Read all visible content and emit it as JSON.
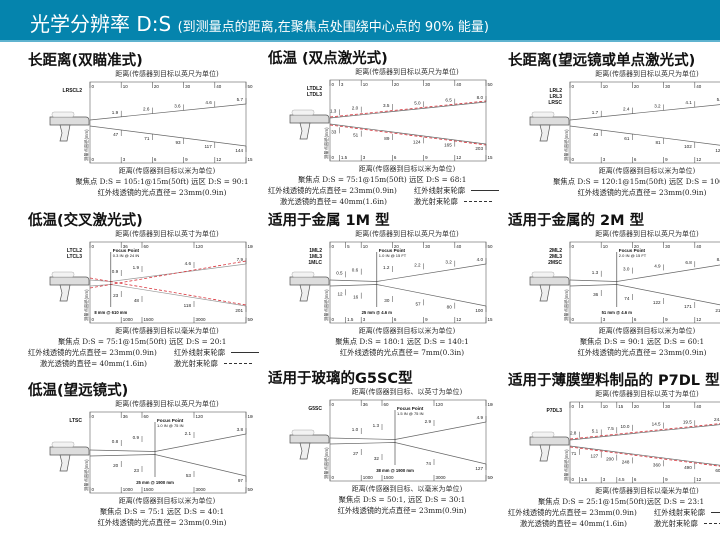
{
  "header": {
    "title": "光学分辨率 D:S",
    "subtitle": "(到测量点的距离,在聚焦点处围绕中心点的 90% 能量)",
    "color": "#0584ad"
  },
  "y_axis_label": "测量点直径(mm)",
  "laser_color": "#d9363e",
  "panels": [
    {
      "title": "长距离(双瞄准式)",
      "top_caption": "距离(传感器到目标以英尺为单位)",
      "top_ticks": [
        0,
        10,
        20,
        30,
        40,
        50
      ],
      "models": [
        "LRSCL2"
      ],
      "upper": [
        "1.9",
        "2.6",
        "3.6",
        "4.6",
        "5.7"
      ],
      "lower": [
        "47",
        "71",
        "93",
        "117",
        "144"
      ],
      "bottom_ticks": [
        "0",
        "3",
        "6",
        "9",
        "12",
        "15"
      ],
      "laser": false,
      "bottom_caption": "距离(传感器到目标以米为单位)",
      "spec": [
        "聚焦点 D:S = 105:1@15m(50ft)  远区 D:S = 90:1",
        "红外线透镜的光点直径= 23mm(0.9in)"
      ]
    },
    {
      "title": "低温 (双点激光式)",
      "top_caption": "距离(传感器到目标以英尺为单位)",
      "top_ticks": [
        0,
        3,
        10,
        20,
        30,
        40,
        50
      ],
      "models": [
        "LTDL2",
        "LTDL3"
      ],
      "upper": [
        "1.3",
        "2.0",
        "3.5",
        "5.0",
        "6.5",
        "8.0"
      ],
      "lower": [
        "33",
        "51",
        "89",
        "124",
        "165",
        "203"
      ],
      "bottom_ticks": [
        "0",
        "1.5",
        "3",
        "6",
        "9",
        "12",
        "15"
      ],
      "laser": true,
      "bottom_caption": "距离(传感器到目标以米为单位)",
      "spec": [
        "聚焦点 D:S = 75:1@15m(50ft)   远区 D:S = 68:1"
      ],
      "legend": [
        {
          "text": "红外线透镜的光点直径= 23mm(0.9in)",
          "label": "红外线射束轮廓",
          "style": "solid"
        },
        {
          "text": "激光透镜的直径= 40mm(1.6in)",
          "label": "激光射束轮廓",
          "style": "dashed"
        }
      ]
    },
    {
      "title": "长距离(望远镜或单点激光式)",
      "top_caption": "距离(传感器到目标以英尺为单位)",
      "top_ticks": [
        0,
        10,
        20,
        30,
        40,
        50
      ],
      "models": [
        "LRL2",
        "LRL3",
        "LRSC"
      ],
      "upper": [
        "1.7",
        "2.4",
        "3.2",
        "4.1",
        "5.0"
      ],
      "lower": [
        "43",
        "61",
        "81",
        "102",
        "124"
      ],
      "bottom_ticks": [
        "0",
        "3",
        "6",
        "9",
        "12",
        "15"
      ],
      "laser": false,
      "bottom_caption": "距离(传感器到目标以米为单位)",
      "spec": [
        "聚焦点 D:S = 120:1@15m(50ft)  远区 D:S = 100:1",
        "红外线透镜的光点直径= 23mm(0.9in)"
      ]
    },
    {
      "title": "低温(交叉激光式)",
      "top_caption": "距离(传感器到目标以英寸为单位)",
      "top_ticks": [
        0,
        36,
        60,
        120,
        180
      ],
      "models": [
        "LTCL2",
        "LTCL3"
      ],
      "focus": {
        "label": "Focus Point",
        "value": "0.3 IN @ 24 IN",
        "at": 24,
        "metric": "8 mm @ 610 mm"
      },
      "upper": [
        "0.9",
        "1.9",
        "4.6",
        "7.9"
      ],
      "lower": [
        "23",
        "48",
        "118",
        "201"
      ],
      "bottom_ticks": [
        "0",
        "1000",
        "1500",
        "3000",
        "5000"
      ],
      "laser": true,
      "bottom_caption": "距离(传感器到目标以毫米为单位)",
      "spec": [
        "聚焦点 D:S = 75:1@15m(50ft)      远区 D:S = 20:1"
      ],
      "legend": [
        {
          "text": "红外线透镜的光点直径= 23mm(0.9in)",
          "label": "红外线射束轮廓",
          "style": "solid"
        },
        {
          "text": "激光透镜的直径= 40mm(1.6in)",
          "label": "激光射束轮廓",
          "style": "dashed"
        }
      ]
    },
    {
      "title": "适用于金属 1M 型",
      "top_caption": "距离(传感器到目标以英尺为单位)",
      "top_ticks": [
        0,
        5,
        10,
        20,
        30,
        40,
        50
      ],
      "models": [
        "1ML2",
        "1ML3",
        "1MLC"
      ],
      "focus": {
        "label": "Focus Point",
        "value": "1.0 IN @ 15 FT",
        "at": 15,
        "metric": "25 mm @ 4.6 m"
      },
      "upper": [
        "0.5",
        "0.6",
        "1.2",
        "2.2",
        "3.2",
        "4.0"
      ],
      "lower": [
        "12",
        "16",
        "30",
        "57",
        "80",
        "100"
      ],
      "bottom_ticks": [
        "0",
        "1.5",
        "3",
        "6",
        "9",
        "12",
        "15"
      ],
      "laser": false,
      "bottom_caption": "距离(传感器到目标以米为单位)",
      "spec": [
        "聚焦点 D:S = 180:1   远区 D:S = 140:1",
        "红外线透镜的光点直径= 7mm(0.3in)"
      ]
    },
    {
      "title": "适用于金属的 2M 型",
      "top_caption": "距离(传感器到目标以英尺为单位)",
      "top_ticks": [
        0,
        10,
        20,
        30,
        40,
        50
      ],
      "models": [
        "2ML2",
        "2ML3",
        "2MSC"
      ],
      "focus": {
        "label": "Focus Point",
        "value": "2.0 IN @ 15 FT",
        "at": 15,
        "metric": "51 mm @ 4.6 m"
      },
      "upper": [
        "1.3",
        "3.0",
        "4.9",
        "6.8",
        "8.6"
      ],
      "lower": [
        "36",
        "74",
        "122",
        "171",
        "218"
      ],
      "bottom_ticks": [
        "0",
        "3",
        "6",
        "9",
        "12",
        "15"
      ],
      "laser": false,
      "bottom_caption": "距离(传感器到目标以米为单位)",
      "spec": [
        "聚焦点 D:S = 90:1 远区 D:S = 60:1",
        "红外线透镜的光点直径= 23mm(0.9in)"
      ]
    },
    {
      "title": "低温(望远镜式)",
      "top_caption": "距离(传感器到目标以英尺为单位)",
      "top_ticks": [
        0,
        36,
        60,
        120,
        180
      ],
      "models": [
        "LTSC"
      ],
      "focus": {
        "label": "Focus Point",
        "value": "1.0 IN @ 75 IN",
        "at": 75,
        "metric": "25 mm @ 1900 mm"
      },
      "upper": [
        "0.8",
        "0.9",
        "2.1",
        "3.8"
      ],
      "lower": [
        "20",
        "23",
        "53",
        "97"
      ],
      "bottom_ticks": [
        "0",
        "1000",
        "1500",
        "3000",
        "5000"
      ],
      "laser": false,
      "bottom_caption": "距离(传感器到目标以米为单位)",
      "spec": [
        "聚焦点 D:S = 75:1 远区 D:S = 40:1",
        "红外线透镜的光点直径= 23mm(0.9in)"
      ]
    },
    {
      "title": "适用于玻璃的G5SC型",
      "top_caption": "距离(传感器到目标、以英寸为单位)",
      "top_ticks": [
        0,
        36,
        60,
        120,
        180
      ],
      "models": [
        "G5SC"
      ],
      "focus": {
        "label": "Focus Point",
        "value": "1.5 IN @ 75 IN",
        "at": 75,
        "metric": "38 mm @ 1900 mm"
      },
      "upper": [
        "1.0",
        "1.3",
        "2.9",
        "4.9"
      ],
      "lower": [
        "27",
        "32",
        "74",
        "127"
      ],
      "bottom_ticks": [
        "0",
        "1000",
        "1500",
        "3000",
        "5000"
      ],
      "laser": false,
      "bottom_caption": "距离(传感器到目标、以毫米为单位)",
      "spec": [
        "聚焦点 D:S = 50:1,  远区 D:S = 30:1",
        "红外线透镜的光点直径= 23mm(0.9in)"
      ]
    },
    {
      "title": "适用于薄膜塑料制品的 P7DL 型",
      "top_caption": "距离(传感器到目标以英寸为单位)",
      "top_ticks": [
        0,
        3,
        10,
        15,
        20,
        30,
        40,
        50
      ],
      "models": [
        "P7DL3"
      ],
      "upper": [
        "2.8",
        "5.1",
        "7.5",
        "10.0",
        "14.5",
        "19.5",
        "24.0"
      ],
      "lower": [
        "71",
        "127",
        "200",
        "248",
        "360",
        "490",
        "603"
      ],
      "bottom_ticks": [
        "0",
        "1.5",
        "3",
        "4.5",
        "6",
        "9",
        "12",
        "15"
      ],
      "laser": true,
      "bottom_caption": "距离(传感器到目标以毫米为单位)",
      "spec": [
        "聚焦点 D:S = 25:1@15m(50ft)远区 D:S = 23:1"
      ],
      "legend": [
        {
          "text": "红外线透镜的光点直径= 23mm(0.9in)",
          "label": "红外线射束轮廓",
          "style": "solid"
        },
        {
          "text": "激光透镜的直径= 40mm(1.6in)",
          "label": "激光射束轮廓",
          "style": "dashed"
        }
      ]
    }
  ]
}
